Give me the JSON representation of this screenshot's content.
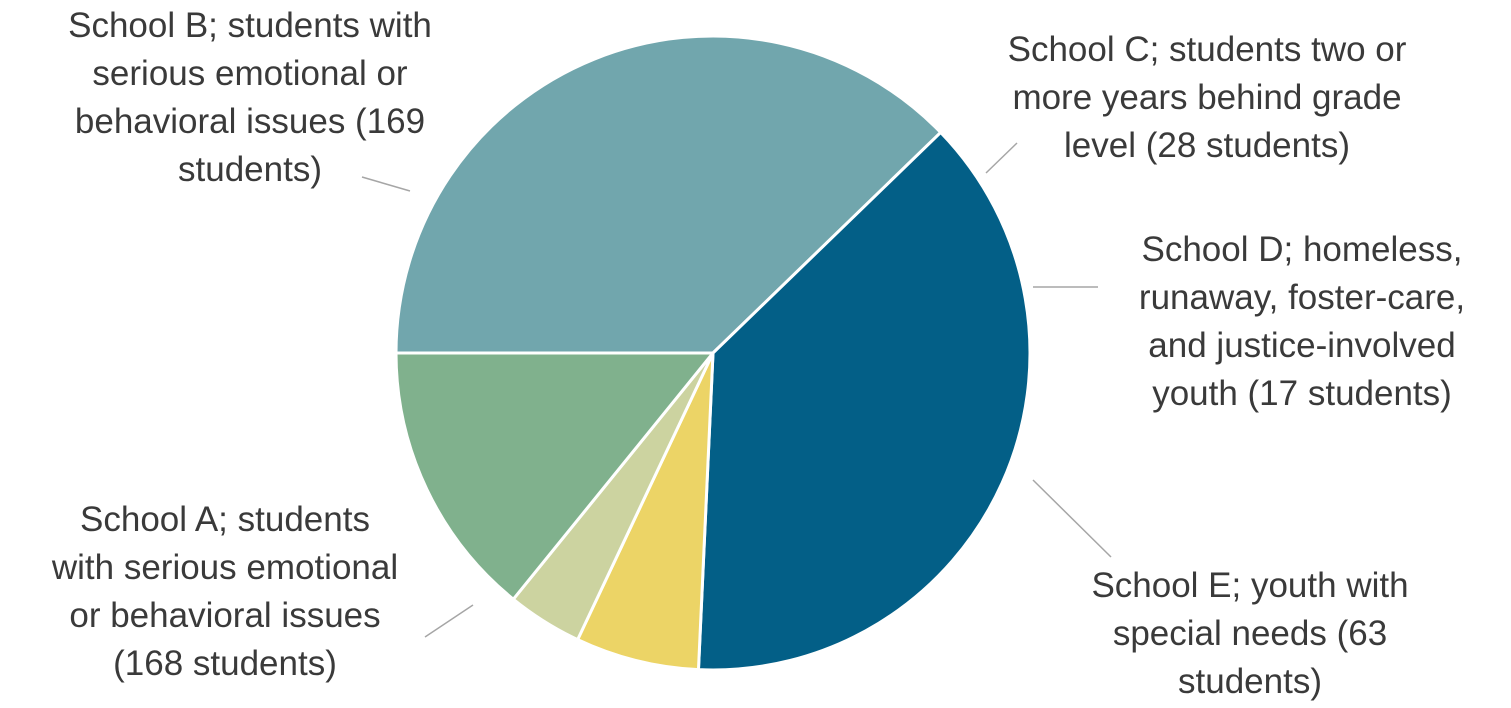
{
  "chart_data": {
    "type": "pie",
    "start": "School A at the 9 o'clock position, slices proceed clockwise",
    "slices": [
      {
        "key": "school_b",
        "label_lines": [
          "School B; students with",
          "serious emotional or",
          "behavioral issues (169",
          "students)"
        ],
        "value": 169,
        "color": "#035f87"
      },
      {
        "key": "school_c",
        "label_lines": [
          "School C; students two or",
          "more years behind grade",
          "level (28 students)"
        ],
        "value": 28,
        "color": "#ecd466"
      },
      {
        "key": "school_d",
        "label_lines": [
          "School D; homeless,",
          "runaway, foster-care,",
          "and justice-involved",
          "youth (17 students)"
        ],
        "value": 17,
        "color": "#ccd3a0"
      },
      {
        "key": "school_e",
        "label_lines": [
          "School E; youth with",
          "special needs (63",
          "students)"
        ],
        "value": 63,
        "color": "#80b18d"
      },
      {
        "key": "school_a",
        "label_lines": [
          "School A; students",
          "with serious emotional",
          "or behavioral issues",
          "(168 students)"
        ],
        "value": 168,
        "color": "#71a6ad"
      }
    ],
    "legend": "none (callout labels with leader lines)"
  }
}
